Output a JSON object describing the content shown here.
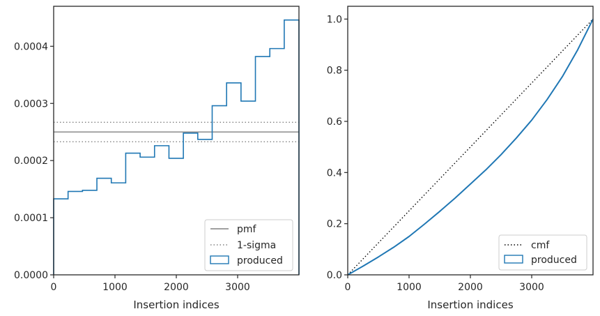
{
  "chart_data": [
    {
      "type": "line",
      "xlabel": "Insertion indices",
      "ylabel": "",
      "xlim": [
        0,
        4000
      ],
      "ylim": [
        0,
        0.00047
      ],
      "xticks": [
        0,
        1000,
        2000,
        3000
      ],
      "xtick_labels": [
        "0",
        "1000",
        "2000",
        "3000"
      ],
      "yticks": [
        0,
        0.0001,
        0.0002,
        0.0003,
        0.0004
      ],
      "ytick_labels": [
        "0.0000",
        "0.0001",
        "0.0002",
        "0.0003",
        "0.0004"
      ],
      "grid": false,
      "legend_position": "lower-right",
      "reference_lines": [
        {
          "name": "pmf",
          "style": "solid",
          "color": "#808080",
          "y": 0.00025
        },
        {
          "name": "1-sigma",
          "style": "dotted",
          "color": "#808080",
          "y": [
            0.000233,
            0.000267
          ]
        }
      ],
      "series": [
        {
          "name": "produced",
          "kind": "step-histogram",
          "color": "#1f77b4",
          "bin_edges": [
            0,
            235,
            470,
            705,
            940,
            1175,
            1410,
            1645,
            1880,
            2115,
            2350,
            2585,
            2820,
            3055,
            3290,
            3525,
            3760,
            4000
          ],
          "values": [
            0.000133,
            0.000146,
            0.000148,
            0.000169,
            0.000161,
            0.000213,
            0.000206,
            0.000226,
            0.000204,
            0.000248,
            0.000237,
            0.000296,
            0.000336,
            0.000304,
            0.000382,
            0.000396,
            0.000446
          ]
        }
      ]
    },
    {
      "type": "line",
      "xlabel": "Insertion indices",
      "ylabel": "",
      "xlim": [
        0,
        4000
      ],
      "ylim": [
        0,
        1.05
      ],
      "xticks": [
        0,
        1000,
        2000,
        3000
      ],
      "xtick_labels": [
        "0",
        "1000",
        "2000",
        "3000"
      ],
      "yticks": [
        0,
        0.2,
        0.4,
        0.6,
        0.8,
        1.0
      ],
      "ytick_labels": [
        "0.0",
        "0.2",
        "0.4",
        "0.6",
        "0.8",
        "1.0"
      ],
      "grid": false,
      "legend_position": "lower-right",
      "series": [
        {
          "name": "cmf",
          "style": "dotted",
          "color": "#000000",
          "x": [
            0,
            4000
          ],
          "y": [
            0,
            1.0
          ]
        },
        {
          "name": "produced",
          "style": "solid",
          "color": "#1f77b4",
          "x": [
            0,
            250,
            500,
            750,
            1000,
            1250,
            1500,
            1750,
            2000,
            2250,
            2500,
            2750,
            3000,
            3250,
            3500,
            3750,
            4000
          ],
          "y": [
            0,
            0.034,
            0.07,
            0.108,
            0.15,
            0.198,
            0.248,
            0.3,
            0.355,
            0.41,
            0.47,
            0.535,
            0.605,
            0.685,
            0.775,
            0.88,
            1.0
          ]
        }
      ]
    }
  ]
}
